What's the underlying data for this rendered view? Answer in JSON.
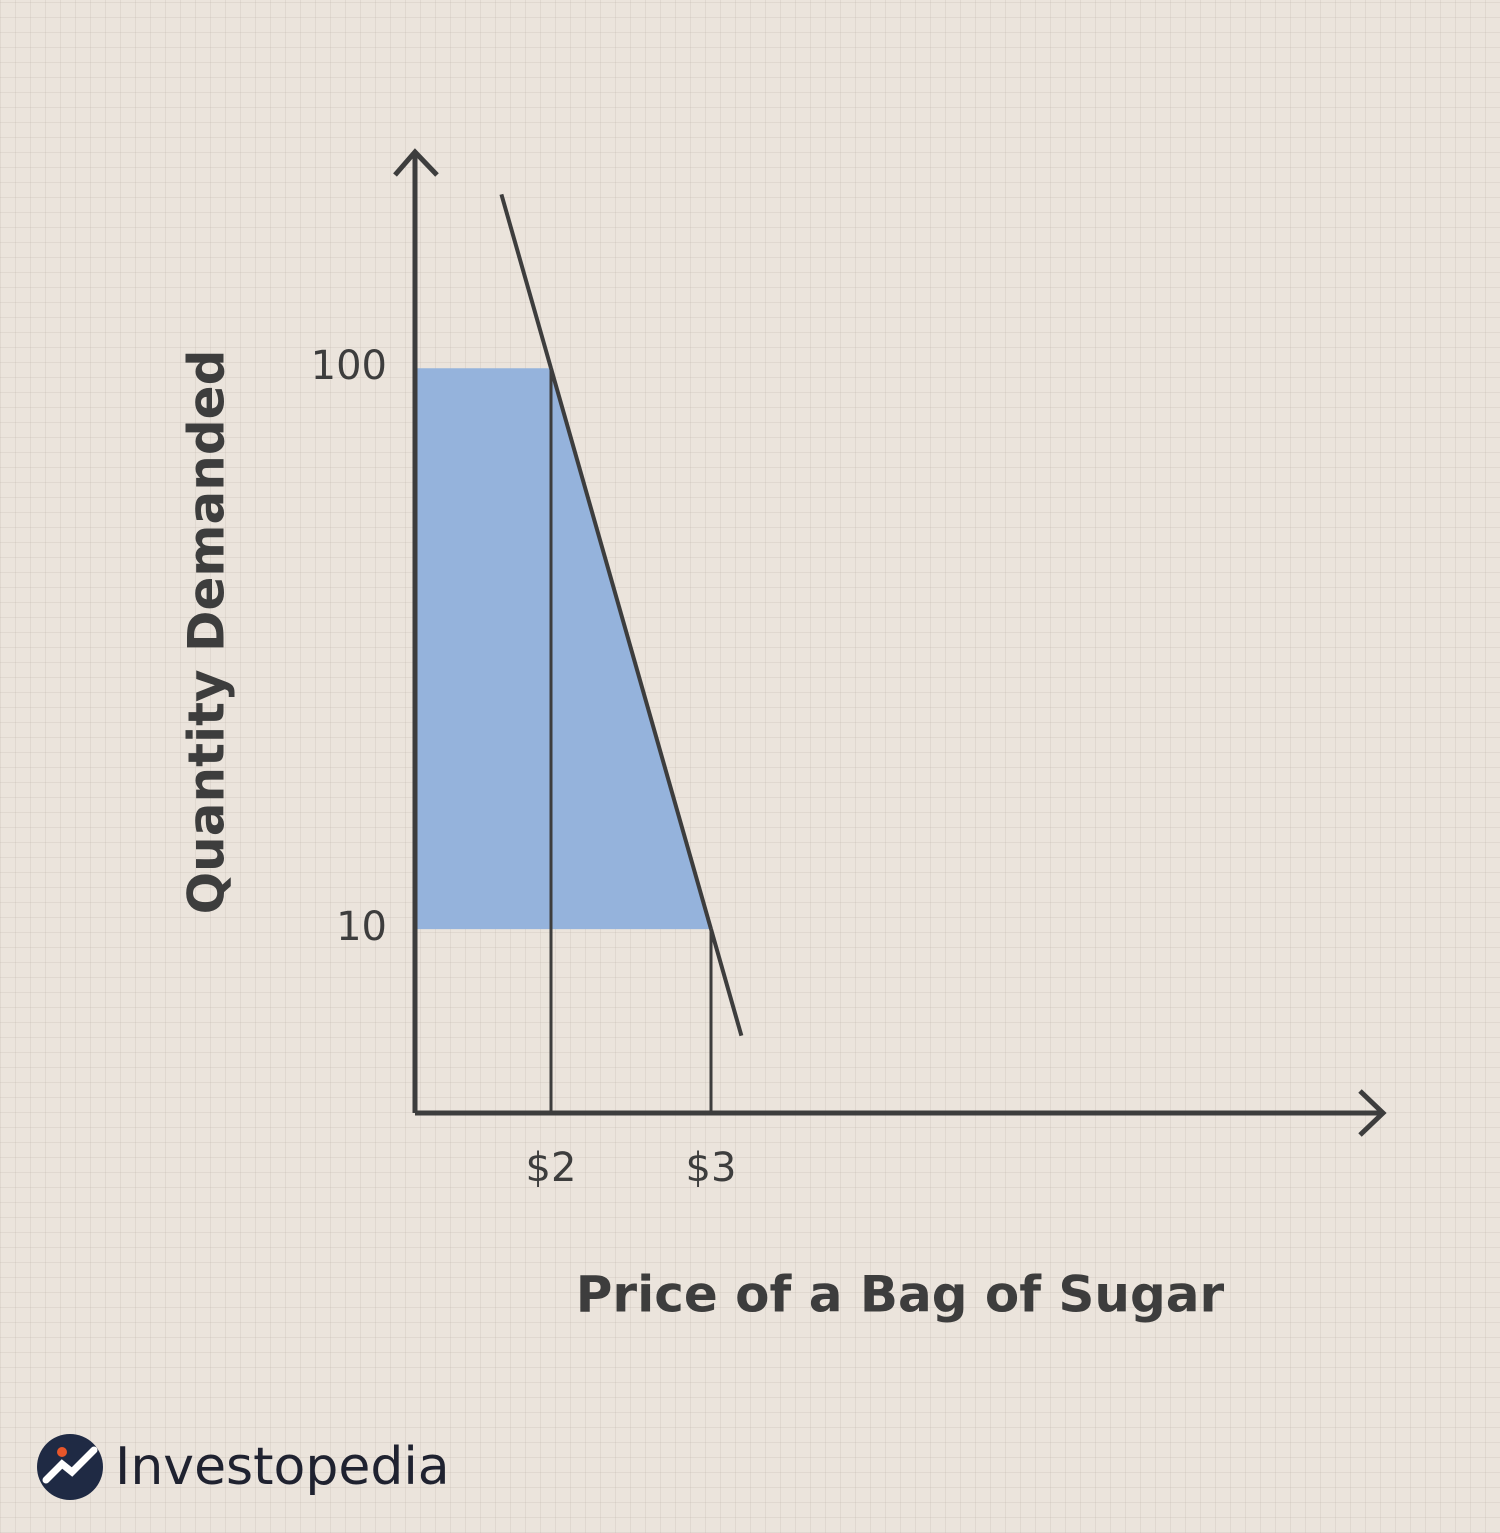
{
  "chart_data": {
    "type": "line",
    "x_label": "Price of a Bag of Sugar",
    "y_label": "Quantity Demanded",
    "x": [
      2,
      3
    ],
    "values": [
      100,
      10
    ],
    "color": "#3d3d3d",
    "fill_color": "#95b3dc",
    "xlim": [
      1.15,
      7.2
    ],
    "xticks": [
      {
        "value": 2,
        "label": "$2"
      },
      {
        "value": 3,
        "label": "$3"
      }
    ],
    "ylim": [
      4.7,
      240
    ],
    "yticks": [
      10,
      100
    ],
    "y_log_scale": true,
    "source": "Investopedia"
  }
}
